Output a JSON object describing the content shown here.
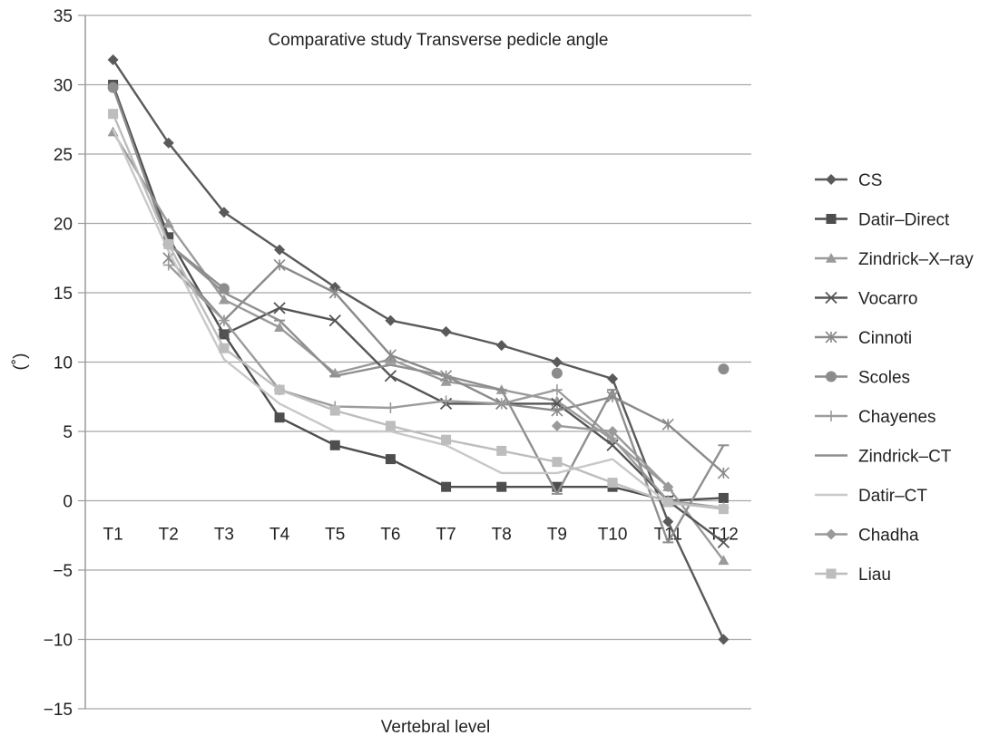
{
  "chart_data": {
    "type": "line",
    "title": "Comparative study Transverse pedicle angle",
    "xlabel": "Vertebral level",
    "ylabel": "(˚)",
    "categories": [
      "T1",
      "T2",
      "T3",
      "T4",
      "T5",
      "T6",
      "T7",
      "T8",
      "T9",
      "T10",
      "T11",
      "T12"
    ],
    "ylim": [
      -15,
      35
    ],
    "yticks": [
      -15,
      -10,
      -5,
      0,
      5,
      10,
      15,
      20,
      25,
      30,
      35
    ],
    "grid": "horizontal",
    "legend_position": "right",
    "series": [
      {
        "name": "CS",
        "marker": "diamond",
        "color": "#5a5a5a",
        "values": [
          31.8,
          25.8,
          20.8,
          18.1,
          15.4,
          13.0,
          12.2,
          11.2,
          10.0,
          8.8,
          -1.5,
          -10.0
        ]
      },
      {
        "name": "Datir–Direct",
        "marker": "square",
        "color": "#4e4e4e",
        "values": [
          30.0,
          19.0,
          12.0,
          6.0,
          4.0,
          3.0,
          1.0,
          1.0,
          1.0,
          1.0,
          0.0,
          0.2
        ]
      },
      {
        "name": "Zindrick–X–ray",
        "marker": "triangle",
        "color": "#9a9a9a",
        "values": [
          26.6,
          20.0,
          14.5,
          12.5,
          9.2,
          10.2,
          8.6,
          8.0,
          7.2,
          4.4,
          1.0,
          -4.3
        ]
      },
      {
        "name": "Vocarro",
        "marker": "x",
        "color": "#555555",
        "values": [
          null,
          null,
          12.0,
          13.9,
          13.0,
          9.0,
          7.0,
          7.0,
          7.0,
          4.0,
          0.0,
          -3.0
        ]
      },
      {
        "name": "Cinnoti",
        "marker": "asterisk",
        "color": "#8a8a8a",
        "values": [
          null,
          17.5,
          13.0,
          17.0,
          15.0,
          10.5,
          9.0,
          7.0,
          6.5,
          7.5,
          5.5,
          2.0
        ]
      },
      {
        "name": "Scoles",
        "marker": "circle",
        "color": "#8c8c8c",
        "values": [
          29.8,
          18.5,
          15.3,
          null,
          null,
          null,
          null,
          null,
          9.2,
          null,
          null,
          9.5
        ]
      },
      {
        "name": "Chayenes",
        "marker": "plus",
        "color": "#9c9c9c",
        "values": [
          null,
          17.0,
          13.0,
          8.0,
          6.8,
          6.7,
          7.2,
          7.0,
          8.0,
          4.5,
          0.0,
          -0.5
        ]
      },
      {
        "name": "Zindrick–CT",
        "marker": "dash",
        "color": "#8f8f8f",
        "values": [
          null,
          18.5,
          15.0,
          13.0,
          9.0,
          9.8,
          9.0,
          8.0,
          0.5,
          8.0,
          -3.0,
          4.0
        ]
      },
      {
        "name": "Datir–CT",
        "marker": "none",
        "color": "#c8c8c8",
        "values": [
          26.8,
          18.0,
          10.2,
          7.0,
          5.0,
          5.0,
          4.0,
          2.0,
          2.0,
          3.0,
          -0.2,
          -0.5
        ]
      },
      {
        "name": "Chadha",
        "marker": "diamond",
        "color": "#9a9a9a",
        "values": [
          null,
          null,
          null,
          null,
          null,
          null,
          null,
          null,
          5.4,
          5.0,
          1.0,
          null
        ]
      },
      {
        "name": "Liau",
        "marker": "square",
        "color": "#bdbdbd",
        "values": [
          27.9,
          18.5,
          11.0,
          8.0,
          6.5,
          5.4,
          4.4,
          3.6,
          2.8,
          1.3,
          -0.1,
          -0.6
        ]
      }
    ]
  }
}
